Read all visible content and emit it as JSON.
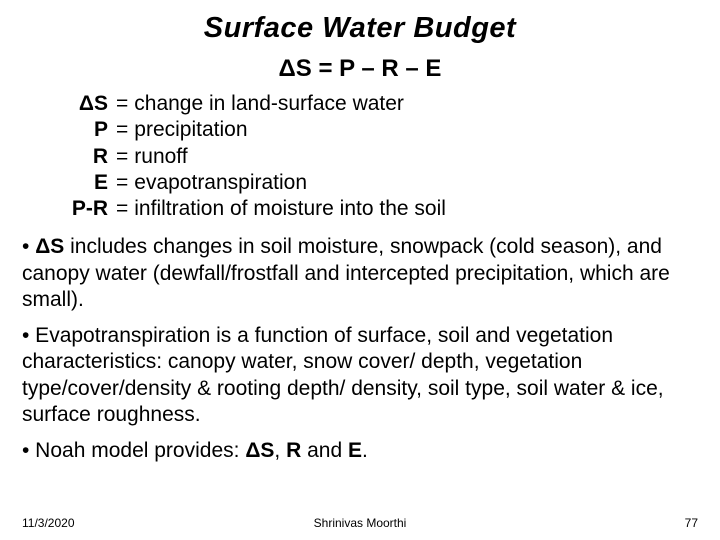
{
  "title": "Surface Water Budget",
  "delta": "Δ",
  "equation": "ΔS = P – R – E",
  "definitions": [
    {
      "symbol": "ΔS",
      "text": "change in land-surface water"
    },
    {
      "symbol": "P",
      "text": "precipitation"
    },
    {
      "symbol": "R",
      "text": "runoff"
    },
    {
      "symbol": "E",
      "text": "evapotranspiration"
    },
    {
      "symbol": "P-R",
      "text": "infiltration of moisture into the soil"
    }
  ],
  "bullet1_pre": "• ",
  "bullet1_bold": "ΔS",
  "bullet1_rest": " includes changes in soil moisture, snowpack (cold season), and canopy water (dewfall/frostfall and intercepted precipitation, which are small).",
  "bullet2": "• Evapotranspiration is a function of surface, soil and vegetation characteristics:  canopy water, snow cover/ depth, vegetation type/cover/density & rooting depth/ density, soil type, soil water & ice, surface roughness.",
  "bullet3_pre": "• Noah model provides: ",
  "bullet3_b1": "ΔS",
  "bullet3_mid1": ", ",
  "bullet3_b2": "R",
  "bullet3_mid2": " and ",
  "bullet3_b3": "E",
  "bullet3_end": ".",
  "footer": {
    "date": "11/3/2020",
    "author": "Shrinivas Moorthi",
    "page": "77"
  },
  "colors": {
    "text": "#000000",
    "background": "#ffffff"
  },
  "fonts": {
    "family": "Verdana",
    "title_size_pt": 29,
    "equation_size_pt": 24,
    "body_size_pt": 21,
    "footer_size_pt": 12
  }
}
